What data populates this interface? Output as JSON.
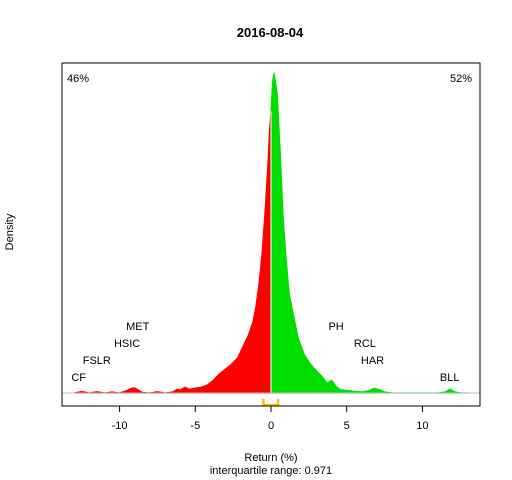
{
  "chart_data": {
    "type": "area",
    "title": "2016-08-04",
    "xlabel": "Return (%)",
    "ylabel": "Density",
    "subtitle": "interquartile range: 0.971",
    "xlim": [
      -13.8,
      13.8
    ],
    "x_ticks": [
      -10,
      -5,
      0,
      5,
      10
    ],
    "ylim": [
      0,
      1
    ],
    "grid": false,
    "colors": {
      "negative": "#ff0000",
      "positive": "#00dd00",
      "baseline": "#bebebe",
      "iqr_marker": "#ffc000",
      "text": "#000000"
    },
    "negative_share": "46%",
    "positive_share": "52%",
    "interquartile_range": [
      -0.5,
      0.47
    ],
    "density_curve": {
      "x": [
        -13.0,
        -12.5,
        -12.0,
        -11.5,
        -11.0,
        -10.5,
        -10.0,
        -9.5,
        -9.2,
        -9.0,
        -8.8,
        -8.5,
        -8.0,
        -7.5,
        -7.0,
        -6.5,
        -6.2,
        -6.0,
        -5.7,
        -5.4,
        -5.0,
        -4.6,
        -4.2,
        -3.8,
        -3.4,
        -3.0,
        -2.6,
        -2.2,
        -1.8,
        -1.5,
        -1.2,
        -1.0,
        -0.8,
        -0.6,
        -0.4,
        -0.2,
        -0.1,
        0.0,
        0.1,
        0.2,
        0.4,
        0.6,
        0.8,
        1.0,
        1.2,
        1.5,
        1.8,
        2.2,
        2.6,
        3.0,
        3.4,
        3.7,
        4.0,
        4.3,
        4.6,
        5.0,
        5.5,
        6.0,
        6.5,
        6.8,
        7.2,
        7.5,
        8.0,
        9.0,
        10.0,
        11.0,
        11.5,
        11.8,
        12.1,
        12.5,
        13.0
      ],
      "y": [
        0.0,
        0.005,
        0.0,
        0.004,
        0.0,
        0.003,
        0.0,
        0.008,
        0.015,
        0.016,
        0.01,
        0.002,
        0.0,
        0.004,
        0.0,
        0.003,
        0.012,
        0.009,
        0.018,
        0.012,
        0.015,
        0.018,
        0.025,
        0.04,
        0.06,
        0.075,
        0.09,
        0.11,
        0.15,
        0.18,
        0.22,
        0.27,
        0.34,
        0.43,
        0.56,
        0.72,
        0.82,
        0.88,
        0.97,
        1.0,
        0.94,
        0.76,
        0.55,
        0.42,
        0.31,
        0.24,
        0.17,
        0.12,
        0.09,
        0.07,
        0.05,
        0.03,
        0.04,
        0.02,
        0.01,
        0.008,
        0.005,
        0.003,
        0.008,
        0.015,
        0.01,
        0.003,
        0.0,
        0.0,
        0.0,
        0.0,
        0.003,
        0.012,
        0.004,
        0.0,
        0.0
      ]
    },
    "annotations": [
      {
        "label": "CF",
        "x": -12.7,
        "level": 1
      },
      {
        "label": "FSLR",
        "x": -11.5,
        "level": 2
      },
      {
        "label": "HSIC",
        "x": -9.5,
        "level": 3
      },
      {
        "label": "MET",
        "x": -8.8,
        "level": 4
      },
      {
        "label": "PH",
        "x": 4.3,
        "level": 4
      },
      {
        "label": "RCL",
        "x": 6.2,
        "level": 3
      },
      {
        "label": "HAR",
        "x": 6.7,
        "level": 2
      },
      {
        "label": "BLL",
        "x": 11.8,
        "level": 1
      }
    ]
  }
}
